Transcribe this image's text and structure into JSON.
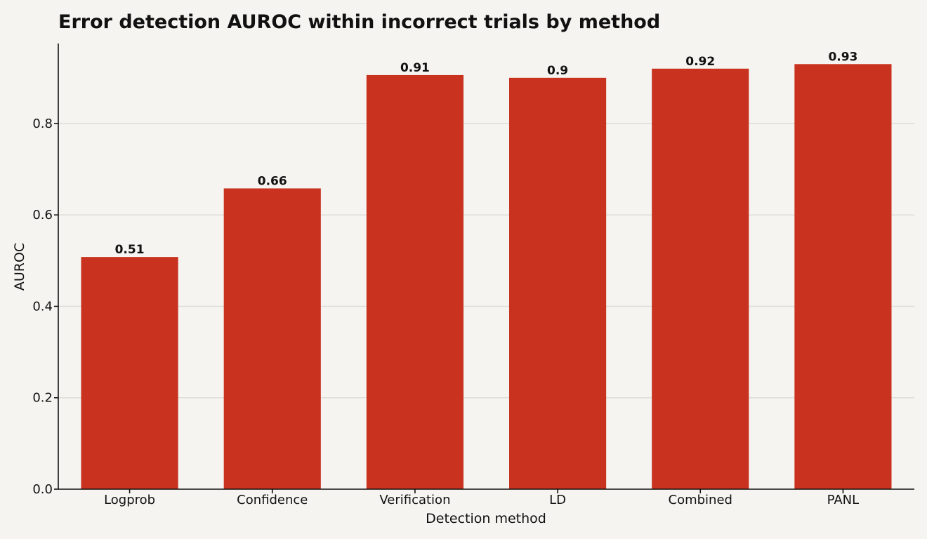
{
  "chart_data": {
    "type": "bar",
    "title": "Error detection AUROC within incorrect trials by method",
    "xlabel": "Detection method",
    "ylabel": "AUROC",
    "categories": [
      "Logprob",
      "Confidence",
      "Verification",
      "LD",
      "Combined",
      "PANL"
    ],
    "values": [
      0.508,
      0.658,
      0.906,
      0.9,
      0.92,
      0.93
    ],
    "data_labels": [
      "0.51",
      "0.66",
      "0.91",
      "0.9",
      "0.92",
      "0.93"
    ],
    "ylim": [
      0,
      0.975
    ],
    "yticks": [
      0.0,
      0.2,
      0.4,
      0.6,
      0.8
    ],
    "ytick_labels": [
      "0.0",
      "0.2",
      "0.4",
      "0.6",
      "0.8"
    ],
    "grid": "horizontal",
    "legend": "none",
    "bar_color": "#c9321f",
    "background": "#f5f4f0"
  }
}
